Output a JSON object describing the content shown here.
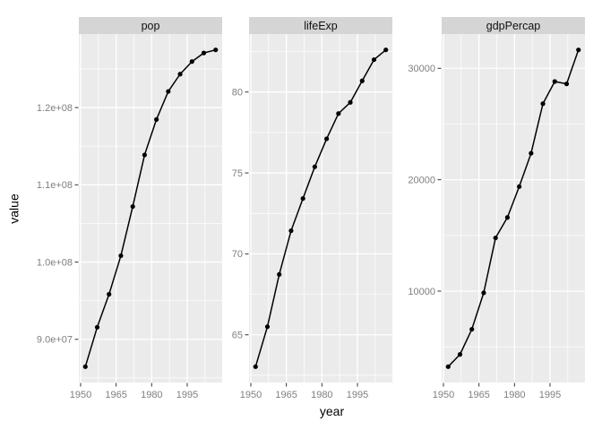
{
  "figure": {
    "background": "#ffffff",
    "panel_background": "#ebebeb",
    "strip_background": "#d5d5d5",
    "grid_major_color": "#ffffff",
    "grid_minor_color": "#ffffff",
    "axis_text_color": "#7f7f7f",
    "tick_mark_color": "#333333",
    "series_color": "#000000"
  },
  "chart_data": {
    "type": "line",
    "title": "",
    "xlabel": "year",
    "ylabel": "value",
    "grid": true,
    "legend": "none",
    "facet_scales": "free_y",
    "x": [
      1952,
      1957,
      1962,
      1967,
      1972,
      1977,
      1982,
      1987,
      1992,
      1997,
      2002,
      2007
    ],
    "x_ticks": [
      1950,
      1965,
      1980,
      1995
    ],
    "x_tick_labels": [
      "1950",
      "1965",
      "1980",
      "1995"
    ],
    "facets": [
      {
        "label": "pop",
        "values": [
          86459025,
          91563009,
          95831757,
          100825279,
          107188273,
          113872473,
          118454974,
          122091325,
          124329269,
          125956499,
          127065841,
          127467972
        ],
        "y_ticks": [
          90000000,
          100000000,
          110000000,
          120000000
        ],
        "y_tick_labels": [
          "9.0e+07",
          "1.0e+08",
          "1.1e+08",
          "1.2e+08"
        ]
      },
      {
        "label": "lifeExp",
        "values": [
          63.03,
          65.5,
          68.73,
          71.43,
          73.42,
          75.38,
          77.11,
          78.67,
          79.36,
          80.69,
          82.0,
          82.603
        ],
        "y_ticks": [
          65,
          70,
          75,
          80
        ],
        "y_tick_labels": [
          "65",
          "70",
          "75",
          "80"
        ]
      },
      {
        "label": "gdpPercap",
        "values": [
          3216.96,
          4317.69,
          6576.65,
          9847.79,
          14778.79,
          16610.38,
          19384.11,
          22375.94,
          26824.9,
          28816.58,
          28604.59,
          31656.07
        ],
        "y_ticks": [
          10000,
          20000,
          30000
        ],
        "y_tick_labels": [
          "10000",
          "20000",
          "30000"
        ]
      }
    ]
  }
}
